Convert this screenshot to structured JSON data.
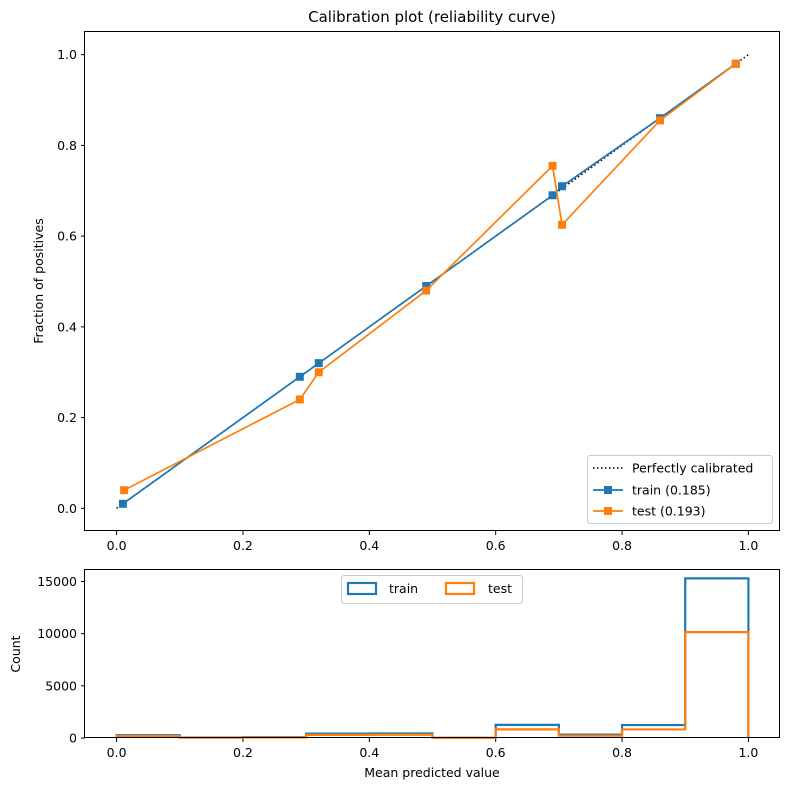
{
  "chart_data": [
    {
      "type": "line",
      "title": "Calibration plot (reliability curve)",
      "xlabel": "",
      "ylabel": "Fraction of positives",
      "xlim": [
        -0.05,
        1.05
      ],
      "ylim": [
        -0.05,
        1.05
      ],
      "xticks": [
        "0.0",
        "0.2",
        "0.4",
        "0.6",
        "0.8",
        "1.0"
      ],
      "yticks": [
        "0.0",
        "0.2",
        "0.4",
        "0.6",
        "0.8",
        "1.0"
      ],
      "legend_position": "lower-right",
      "series": [
        {
          "name": "Perfectly calibrated",
          "color": "#000000",
          "style": "dotted",
          "x": [
            0,
            1
          ],
          "y": [
            0,
            1
          ]
        },
        {
          "name": "train (0.185)",
          "color": "#1f77b4",
          "marker": "square",
          "x": [
            0.01,
            0.29,
            0.32,
            0.49,
            0.69,
            0.705,
            0.86,
            0.98
          ],
          "y": [
            0.01,
            0.29,
            0.32,
            0.49,
            0.69,
            0.71,
            0.86,
            0.98
          ]
        },
        {
          "name": "test (0.193)",
          "color": "#ff7f0e",
          "marker": "square",
          "x": [
            0.012,
            0.29,
            0.32,
            0.49,
            0.69,
            0.705,
            0.86,
            0.98
          ],
          "y": [
            0.04,
            0.24,
            0.3,
            0.48,
            0.755,
            0.625,
            0.855,
            0.98
          ]
        }
      ]
    },
    {
      "type": "histogram",
      "title": "",
      "xlabel": "Mean predicted value",
      "ylabel": "Count",
      "xlim": [
        -0.05,
        1.05
      ],
      "ylim": [
        0,
        16100
      ],
      "xticks": [
        "0.0",
        "0.2",
        "0.4",
        "0.6",
        "0.8",
        "1.0"
      ],
      "yticks": [
        "0",
        "5000",
        "10000",
        "15000"
      ],
      "legend_position": "upper-center",
      "bin_edges": [
        0.0,
        0.1,
        0.2,
        0.3,
        0.4,
        0.5,
        0.6,
        0.7,
        0.8,
        0.9,
        1.0
      ],
      "series": [
        {
          "name": "train",
          "color": "#1f77b4",
          "values": [
            270,
            50,
            90,
            420,
            430,
            20,
            1260,
            330,
            1240,
            15300
          ]
        },
        {
          "name": "test",
          "color": "#ff7f0e",
          "values": [
            180,
            40,
            60,
            300,
            310,
            15,
            830,
            220,
            820,
            10150
          ]
        }
      ]
    }
  ]
}
